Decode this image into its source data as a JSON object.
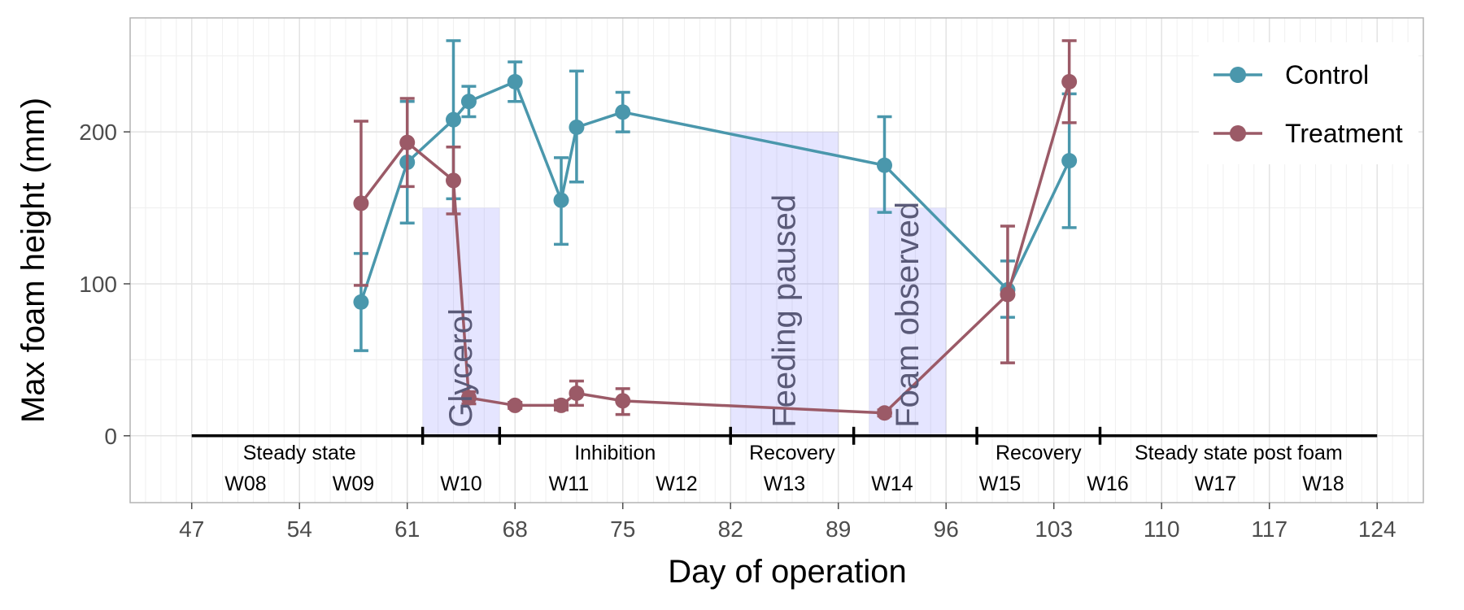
{
  "chart_data": {
    "type": "line",
    "xlabel": "Day of operation",
    "ylabel": "Max foam height (mm)",
    "xlim": [
      43,
      127
    ],
    "ylim": [
      -44,
      275
    ],
    "x_ticks": [
      47,
      54,
      61,
      68,
      75,
      82,
      89,
      96,
      103,
      110,
      117,
      124
    ],
    "y_ticks": [
      0,
      100,
      200
    ],
    "grid": "on",
    "legend_position": "top-right",
    "series": [
      {
        "name": "Control",
        "color": "#4a97ac",
        "points": [
          {
            "x": 58,
            "y": 88,
            "lo": 56,
            "hi": 120
          },
          {
            "x": 61,
            "y": 180,
            "lo": 140,
            "hi": 220
          },
          {
            "x": 64,
            "y": 208,
            "lo": 156,
            "hi": 260
          },
          {
            "x": 65,
            "y": 220,
            "lo": 210,
            "hi": 230
          },
          {
            "x": 68,
            "y": 233,
            "lo": 220,
            "hi": 246
          },
          {
            "x": 71,
            "y": 155,
            "lo": 126,
            "hi": 183
          },
          {
            "x": 72,
            "y": 203,
            "lo": 167,
            "hi": 240
          },
          {
            "x": 75,
            "y": 213,
            "lo": 200,
            "hi": 226
          },
          {
            "x": 92,
            "y": 178,
            "lo": 147,
            "hi": 210
          },
          {
            "x": 100,
            "y": 96,
            "lo": 78,
            "hi": 115
          },
          {
            "x": 104,
            "y": 181,
            "lo": 137,
            "hi": 225
          }
        ]
      },
      {
        "name": "Treatment",
        "color": "#9b5a67",
        "points": [
          {
            "x": 58,
            "y": 153,
            "lo": 99,
            "hi": 207
          },
          {
            "x": 61,
            "y": 193,
            "lo": 164,
            "hi": 222
          },
          {
            "x": 64,
            "y": 168,
            "lo": 146,
            "hi": 190
          },
          {
            "x": 65,
            "y": 25,
            "lo": 21,
            "hi": 29
          },
          {
            "x": 68,
            "y": 20,
            "lo": 18,
            "hi": 22
          },
          {
            "x": 71,
            "y": 20,
            "lo": 17,
            "hi": 23
          },
          {
            "x": 72,
            "y": 28,
            "lo": 20,
            "hi": 36
          },
          {
            "x": 75,
            "y": 23,
            "lo": 14,
            "hi": 31
          },
          {
            "x": 92,
            "y": 15,
            "lo": 13,
            "hi": 17
          },
          {
            "x": 100,
            "y": 93,
            "lo": 48,
            "hi": 138
          },
          {
            "x": 104,
            "y": 233,
            "lo": 206,
            "hi": 260
          }
        ]
      }
    ],
    "shaded_regions": [
      {
        "label": "Glycerol",
        "x0": 62,
        "x1": 67,
        "y_top": 150
      },
      {
        "label": "Feeding paused",
        "x0": 82,
        "x1": 89,
        "y_top": 200
      },
      {
        "label": "Foam observed",
        "x0": 91,
        "x1": 96,
        "y_top": 150
      }
    ],
    "timeline": {
      "y": 0,
      "x_start": 47,
      "x_end": 124,
      "boundaries": [
        62,
        67,
        82,
        90,
        98,
        106
      ],
      "phases": [
        {
          "label": "Steady state",
          "x": 54
        },
        {
          "label": "Inhibition",
          "x": 74.5
        },
        {
          "label": "Recovery",
          "x": 86
        },
        {
          "label": "Recovery",
          "x": 102
        },
        {
          "label": "Steady state post foam",
          "x": 115
        }
      ],
      "weeks": [
        {
          "label": "W08",
          "x": 50.5
        },
        {
          "label": "W09",
          "x": 57.5
        },
        {
          "label": "W10",
          "x": 64.5
        },
        {
          "label": "W11",
          "x": 71.5
        },
        {
          "label": "W12",
          "x": 78.5
        },
        {
          "label": "W13",
          "x": 85.5
        },
        {
          "label": "W14",
          "x": 92.5
        },
        {
          "label": "W15",
          "x": 99.5
        },
        {
          "label": "W16",
          "x": 106.5
        },
        {
          "label": "W17",
          "x": 113.5
        },
        {
          "label": "W18",
          "x": 120.5
        }
      ]
    }
  }
}
